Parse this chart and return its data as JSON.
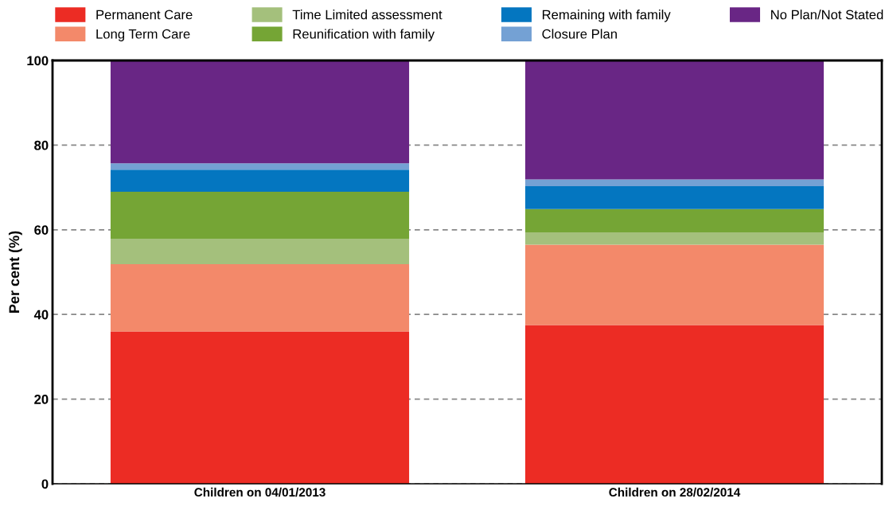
{
  "chart_data": {
    "type": "bar",
    "stacked": true,
    "ylabel": "Per cent (%)",
    "categories": [
      "Children on 04/01/2013",
      "Children on 28/02/2014"
    ],
    "series": [
      {
        "name": "Permanent Care",
        "color": "#ec2c24",
        "values": [
          36.0,
          37.5
        ]
      },
      {
        "name": "Long Term Care",
        "color": "#f3896a",
        "values": [
          15.9,
          19.0
        ]
      },
      {
        "name": "Time Limited assessment",
        "color": "#a4c07c",
        "values": [
          6.0,
          2.9
        ]
      },
      {
        "name": "Reunification with family",
        "color": "#75a535",
        "values": [
          11.1,
          5.5
        ]
      },
      {
        "name": "Remaining with family",
        "color": "#0476c0",
        "values": [
          5.2,
          5.4
        ]
      },
      {
        "name": "Closure Plan",
        "color": "#74a1d4",
        "values": [
          1.5,
          1.6
        ]
      },
      {
        "name": "No Plan/Not Stated",
        "color": "#692685",
        "values": [
          24.3,
          28.1
        ]
      }
    ],
    "ylim": [
      0,
      100
    ],
    "yticks": [
      0,
      20,
      40,
      60,
      80,
      100
    ],
    "grid": "y",
    "legend": "top"
  }
}
